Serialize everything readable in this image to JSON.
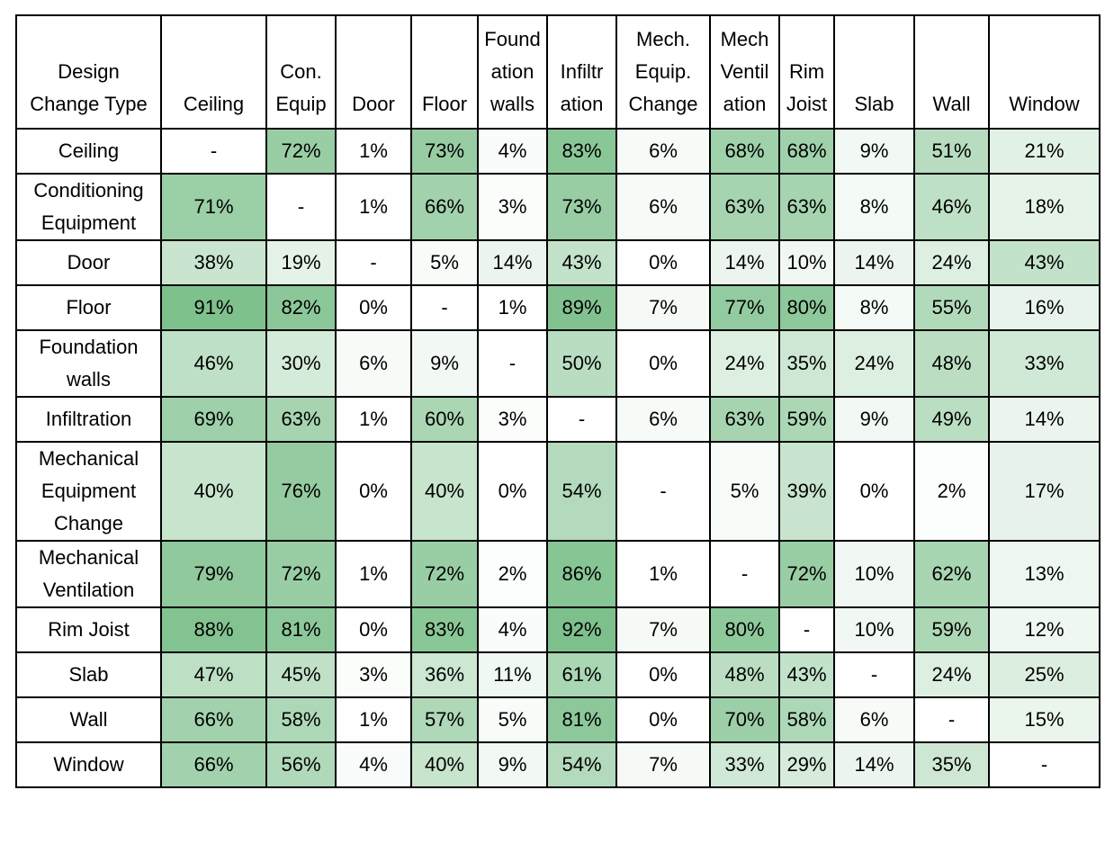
{
  "chart_data": {
    "type": "heatmap",
    "corner_label": "Design\nChange Type",
    "columns": [
      "Ceiling",
      "Con.\nEquip",
      "Door",
      "Floor",
      "Found\nation\nwalls",
      "Infiltr\nation",
      "Mech.\nEquip.\nChange",
      "Mech\nVentil\nation",
      "Rim\nJoist",
      "Slab",
      "Wall",
      "Window"
    ],
    "rows": [
      "Ceiling",
      "Conditioning\nEquipment",
      "Door",
      "Floor",
      "Foundation\nwalls",
      "Infiltration",
      "Mechanical\nEquipment\nChange",
      "Mechanical\nVentilation",
      "Rim Joist",
      "Slab",
      "Wall",
      "Window"
    ],
    "cells": [
      [
        "-",
        "72%",
        "1%",
        "73%",
        "4%",
        "83%",
        "6%",
        "68%",
        "68%",
        "9%",
        "51%",
        "21%"
      ],
      [
        "71%",
        "-",
        "1%",
        "66%",
        "3%",
        "73%",
        "6%",
        "63%",
        "63%",
        "8%",
        "46%",
        "18%"
      ],
      [
        "38%",
        "19%",
        "-",
        "5%",
        "14%",
        "43%",
        "0%",
        "14%",
        "10%",
        "14%",
        "24%",
        "43%"
      ],
      [
        "91%",
        "82%",
        "0%",
        "-",
        "1%",
        "89%",
        "7%",
        "77%",
        "80%",
        "8%",
        "55%",
        "16%"
      ],
      [
        "46%",
        "30%",
        "6%",
        "9%",
        "-",
        "50%",
        "0%",
        "24%",
        "35%",
        "24%",
        "48%",
        "33%"
      ],
      [
        "69%",
        "63%",
        "1%",
        "60%",
        "3%",
        "-",
        "6%",
        "63%",
        "59%",
        "9%",
        "49%",
        "14%"
      ],
      [
        "40%",
        "76%",
        "0%",
        "40%",
        "0%",
        "54%",
        "-",
        "5%",
        "39%",
        "0%",
        "2%",
        "17%"
      ],
      [
        "79%",
        "72%",
        "1%",
        "72%",
        "2%",
        "86%",
        "1%",
        "-",
        "72%",
        "10%",
        "62%",
        "13%"
      ],
      [
        "88%",
        "81%",
        "0%",
        "83%",
        "4%",
        "92%",
        "7%",
        "80%",
        "-",
        "10%",
        "59%",
        "12%"
      ],
      [
        "47%",
        "45%",
        "3%",
        "36%",
        "11%",
        "61%",
        "0%",
        "48%",
        "43%",
        "-",
        "24%",
        "25%"
      ],
      [
        "66%",
        "58%",
        "1%",
        "57%",
        "5%",
        "81%",
        "0%",
        "70%",
        "58%",
        "6%",
        "-",
        "15%"
      ],
      [
        "66%",
        "56%",
        "4%",
        "40%",
        "9%",
        "54%",
        "7%",
        "33%",
        "29%",
        "14%",
        "35%",
        "-"
      ]
    ],
    "color_scale": {
      "low": "#ffffff",
      "high": "#72bb82"
    }
  }
}
